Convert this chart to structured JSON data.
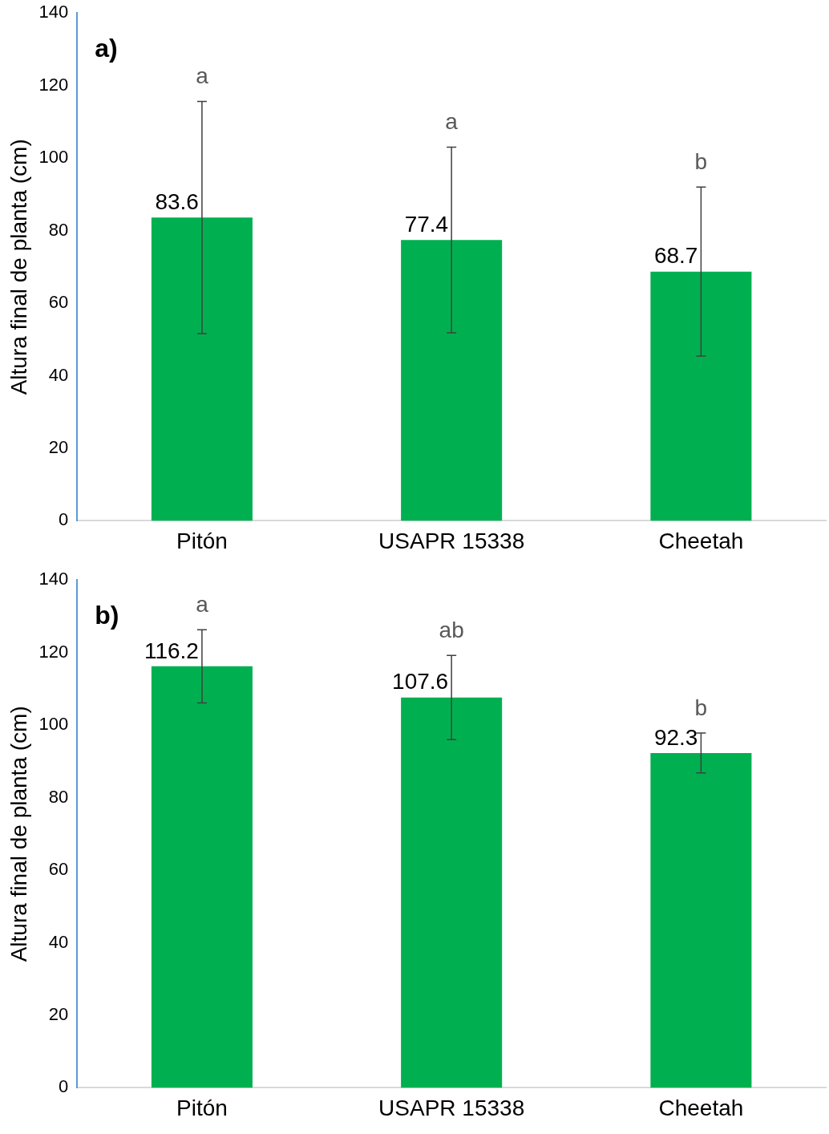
{
  "chart_data": [
    {
      "type": "bar",
      "ylabel": "Altura final de planta (cm)",
      "categories": [
        "Pitón",
        "USAPR 15338",
        "Cheetah"
      ],
      "values": [
        83.6,
        77.4,
        68.7
      ],
      "errors": [
        32,
        25.6,
        23.3
      ],
      "color": "#00b050",
      "ylim": [
        0,
        140
      ],
      "yticks": [
        0,
        20,
        40,
        60,
        80,
        100,
        120,
        140
      ],
      "grid": false,
      "legend": false,
      "data_labels": true,
      "annotations": [
        "a)",
        "a",
        "a",
        "b"
      ]
    },
    {
      "type": "bar",
      "ylabel": "Altura final de planta (cm)",
      "categories": [
        "Pitón",
        "USAPR 15338",
        "Cheetah"
      ],
      "values": [
        116.2,
        107.6,
        92.3
      ],
      "errors": [
        10.1,
        11.6,
        5.5
      ],
      "color": "#00b050",
      "ylim": [
        0,
        140
      ],
      "yticks": [
        0,
        20,
        40,
        60,
        80,
        100,
        120,
        140
      ],
      "grid": false,
      "legend": false,
      "data_labels": true,
      "annotations": [
        "b)",
        "a",
        "ab",
        "b"
      ]
    }
  ]
}
